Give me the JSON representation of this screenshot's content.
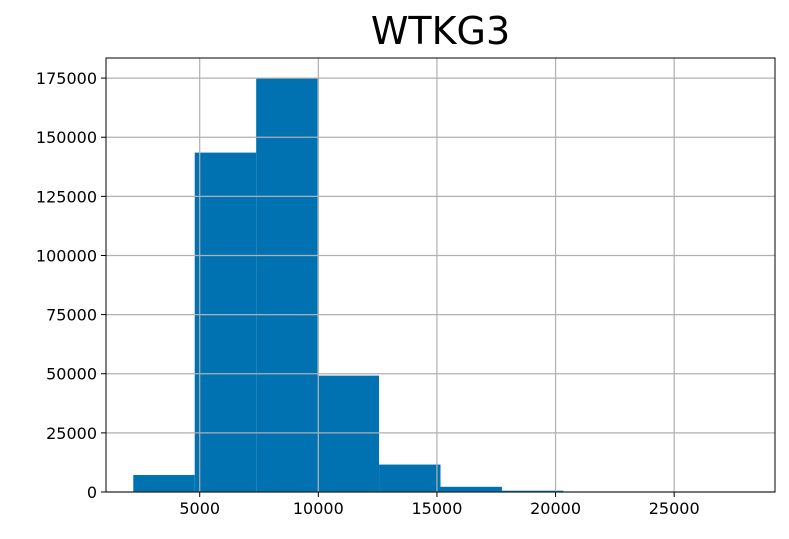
{
  "chart_data": {
    "type": "bar",
    "title": "WTKG3",
    "xlabel": "",
    "ylabel": "",
    "bin_edges": [
      2200,
      4790,
      7380,
      9970,
      12560,
      15150,
      17740,
      20330,
      22920,
      25510,
      28100
    ],
    "counts": [
      7200,
      143500,
      175000,
      49200,
      11600,
      2200,
      550,
      120,
      40,
      20
    ],
    "xlim": [
      1050,
      29250
    ],
    "ylim": [
      0,
      183500
    ],
    "xticks": [
      5000,
      10000,
      15000,
      20000,
      25000
    ],
    "xtick_labels": [
      "5000",
      "10000",
      "15000",
      "20000",
      "25000"
    ],
    "yticks": [
      0,
      25000,
      50000,
      75000,
      100000,
      125000,
      150000,
      175000
    ],
    "ytick_labels": [
      "0",
      "25000",
      "50000",
      "75000",
      "100000",
      "125000",
      "150000",
      "175000"
    ],
    "grid": true,
    "bar_color": "#0072b2",
    "grid_color": "#b0b0b0"
  }
}
